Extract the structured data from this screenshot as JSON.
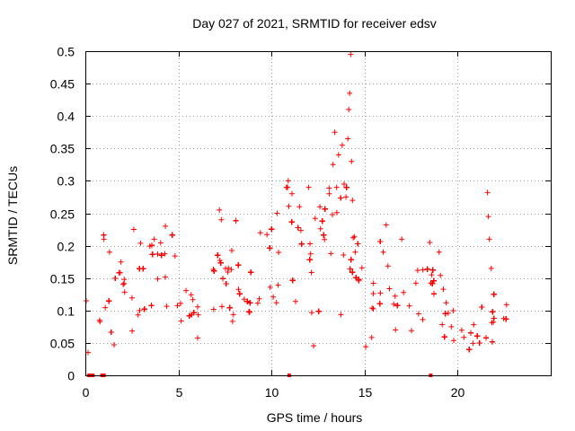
{
  "chart_data": {
    "type": "scatter",
    "title": "Day 027 of 2021, SRMTID for receiver edsv",
    "xlabel": "GPS time / hours",
    "ylabel": "SRMTID / TECUs",
    "xlim": [
      0,
      25
    ],
    "ylim": [
      0,
      0.5
    ],
    "grid": true,
    "marker": "+",
    "series_color": "#ff0000",
    "x_ticks": [
      {
        "value": 0,
        "label": "0"
      },
      {
        "value": 5,
        "label": "5"
      },
      {
        "value": 10,
        "label": "10"
      },
      {
        "value": 15,
        "label": "15"
      },
      {
        "value": 20,
        "label": "20"
      }
    ],
    "y_ticks": [
      {
        "value": 0,
        "label": "0"
      },
      {
        "value": 0.05,
        "label": "0.05"
      },
      {
        "value": 0.1,
        "label": "0.1"
      },
      {
        "value": 0.15,
        "label": "0.15"
      },
      {
        "value": 0.2,
        "label": "0.2"
      },
      {
        "value": 0.25,
        "label": "0.25"
      },
      {
        "value": 0.3,
        "label": "0.3"
      },
      {
        "value": 0.35,
        "label": "0.35"
      },
      {
        "value": 0.4,
        "label": "0.4"
      },
      {
        "value": 0.45,
        "label": "0.45"
      },
      {
        "value": 0.5,
        "label": "0.5"
      }
    ],
    "trend": [
      [
        0.0,
        0.1
      ],
      [
        0.5,
        0.11
      ],
      [
        1.0,
        0.12
      ],
      [
        1.5,
        0.13
      ],
      [
        2.0,
        0.12
      ],
      [
        2.5,
        0.15
      ],
      [
        3.0,
        0.15
      ],
      [
        3.5,
        0.13
      ],
      [
        4.0,
        0.14
      ],
      [
        4.5,
        0.13
      ],
      [
        5.0,
        0.1
      ],
      [
        5.5,
        0.1
      ],
      [
        6.0,
        0.1
      ],
      [
        6.5,
        0.13
      ],
      [
        7.0,
        0.15
      ],
      [
        7.5,
        0.14
      ],
      [
        8.0,
        0.15
      ],
      [
        8.5,
        0.12
      ],
      [
        9.0,
        0.12
      ],
      [
        9.5,
        0.14
      ],
      [
        10.0,
        0.16
      ],
      [
        10.5,
        0.2
      ],
      [
        11.0,
        0.23
      ],
      [
        11.5,
        0.17
      ],
      [
        12.0,
        0.15
      ],
      [
        12.5,
        0.16
      ],
      [
        13.0,
        0.2
      ],
      [
        13.5,
        0.24
      ],
      [
        14.0,
        0.24
      ],
      [
        14.3,
        0.22
      ],
      [
        14.6,
        0.15
      ],
      [
        15.0,
        0.12
      ],
      [
        15.5,
        0.11
      ],
      [
        16.0,
        0.13
      ],
      [
        16.5,
        0.12
      ],
      [
        17.0,
        0.09
      ],
      [
        17.5,
        0.11
      ],
      [
        18.0,
        0.11
      ],
      [
        18.5,
        0.12
      ],
      [
        19.0,
        0.11
      ],
      [
        19.5,
        0.09
      ],
      [
        20.0,
        0.07
      ],
      [
        20.5,
        0.06
      ],
      [
        21.0,
        0.06
      ],
      [
        21.5,
        0.06
      ],
      [
        22.0,
        0.09
      ],
      [
        22.5,
        0.1
      ],
      [
        22.8,
        0.09
      ]
    ],
    "spikes": [
      [
        0.05,
        0.115
      ],
      [
        1.0,
        0.21
      ],
      [
        1.3,
        0.19
      ],
      [
        2.6,
        0.225
      ],
      [
        3.7,
        0.21
      ],
      [
        4.3,
        0.23
      ],
      [
        7.2,
        0.255
      ],
      [
        7.3,
        0.24
      ],
      [
        9.4,
        0.22
      ],
      [
        10.3,
        0.25
      ],
      [
        10.8,
        0.29
      ],
      [
        10.9,
        0.3
      ],
      [
        11.1,
        0.28
      ],
      [
        11.5,
        0.26
      ],
      [
        12.0,
        0.29
      ],
      [
        12.6,
        0.26
      ],
      [
        13.1,
        0.28
      ],
      [
        13.3,
        0.325
      ],
      [
        13.4,
        0.375
      ],
      [
        13.5,
        0.29
      ],
      [
        13.6,
        0.34
      ],
      [
        13.8,
        0.355
      ],
      [
        13.9,
        0.295
      ],
      [
        14.0,
        0.275
      ],
      [
        14.1,
        0.365
      ],
      [
        14.15,
        0.41
      ],
      [
        14.2,
        0.435
      ],
      [
        14.25,
        0.495
      ],
      [
        14.3,
        0.33
      ],
      [
        14.35,
        0.27
      ],
      [
        14.5,
        0.19
      ],
      [
        16.0,
        0.19
      ],
      [
        17.0,
        0.21
      ],
      [
        18.5,
        0.205
      ],
      [
        19.0,
        0.19
      ],
      [
        21.6,
        0.282
      ],
      [
        21.65,
        0.245
      ],
      [
        21.7,
        0.21
      ],
      [
        21.8,
        0.165
      ]
    ],
    "zero_points": [
      0.2,
      0.25,
      0.3,
      0.35,
      0.4,
      0.9,
      1.0,
      10.95,
      18.55
    ],
    "point_count": 2600
  }
}
